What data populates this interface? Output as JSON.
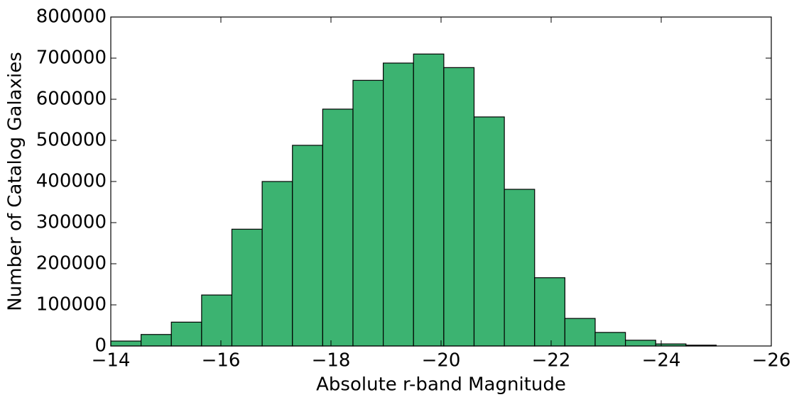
{
  "chart_data": {
    "type": "histogram",
    "xlabel": "Absolute r-band Magnitude",
    "ylabel": "Number of Catalog Galaxies",
    "bins": [
      -14,
      -14.55,
      -15.1,
      -15.65,
      -16.2,
      -16.75,
      -17.3,
      -17.85,
      -18.4,
      -18.95,
      -19.5,
      -20.05,
      -20.6,
      -21.15,
      -21.7,
      -22.25,
      -22.8,
      -23.35,
      -23.9,
      -24.45,
      -25
    ],
    "counts": [
      12000,
      28000,
      58000,
      124000,
      284000,
      400000,
      488000,
      576000,
      646000,
      688000,
      710000,
      677000,
      557000,
      381000,
      166000,
      67000,
      33000,
      14000,
      5000,
      2000
    ],
    "color": "#3cb371",
    "edgecolor": "#000000",
    "xlim": [
      -14,
      -26
    ],
    "ylim": [
      0,
      800000
    ],
    "xticks": [
      {
        "value": -14,
        "label": "−14"
      },
      {
        "value": -16,
        "label": "−16"
      },
      {
        "value": -18,
        "label": "−18"
      },
      {
        "value": -20,
        "label": "−20"
      },
      {
        "value": -22,
        "label": "−22"
      },
      {
        "value": -24,
        "label": "−24"
      },
      {
        "value": -26,
        "label": "−26"
      }
    ],
    "yticks": [
      0,
      100000,
      200000,
      300000,
      400000,
      500000,
      600000,
      700000,
      800000
    ]
  }
}
